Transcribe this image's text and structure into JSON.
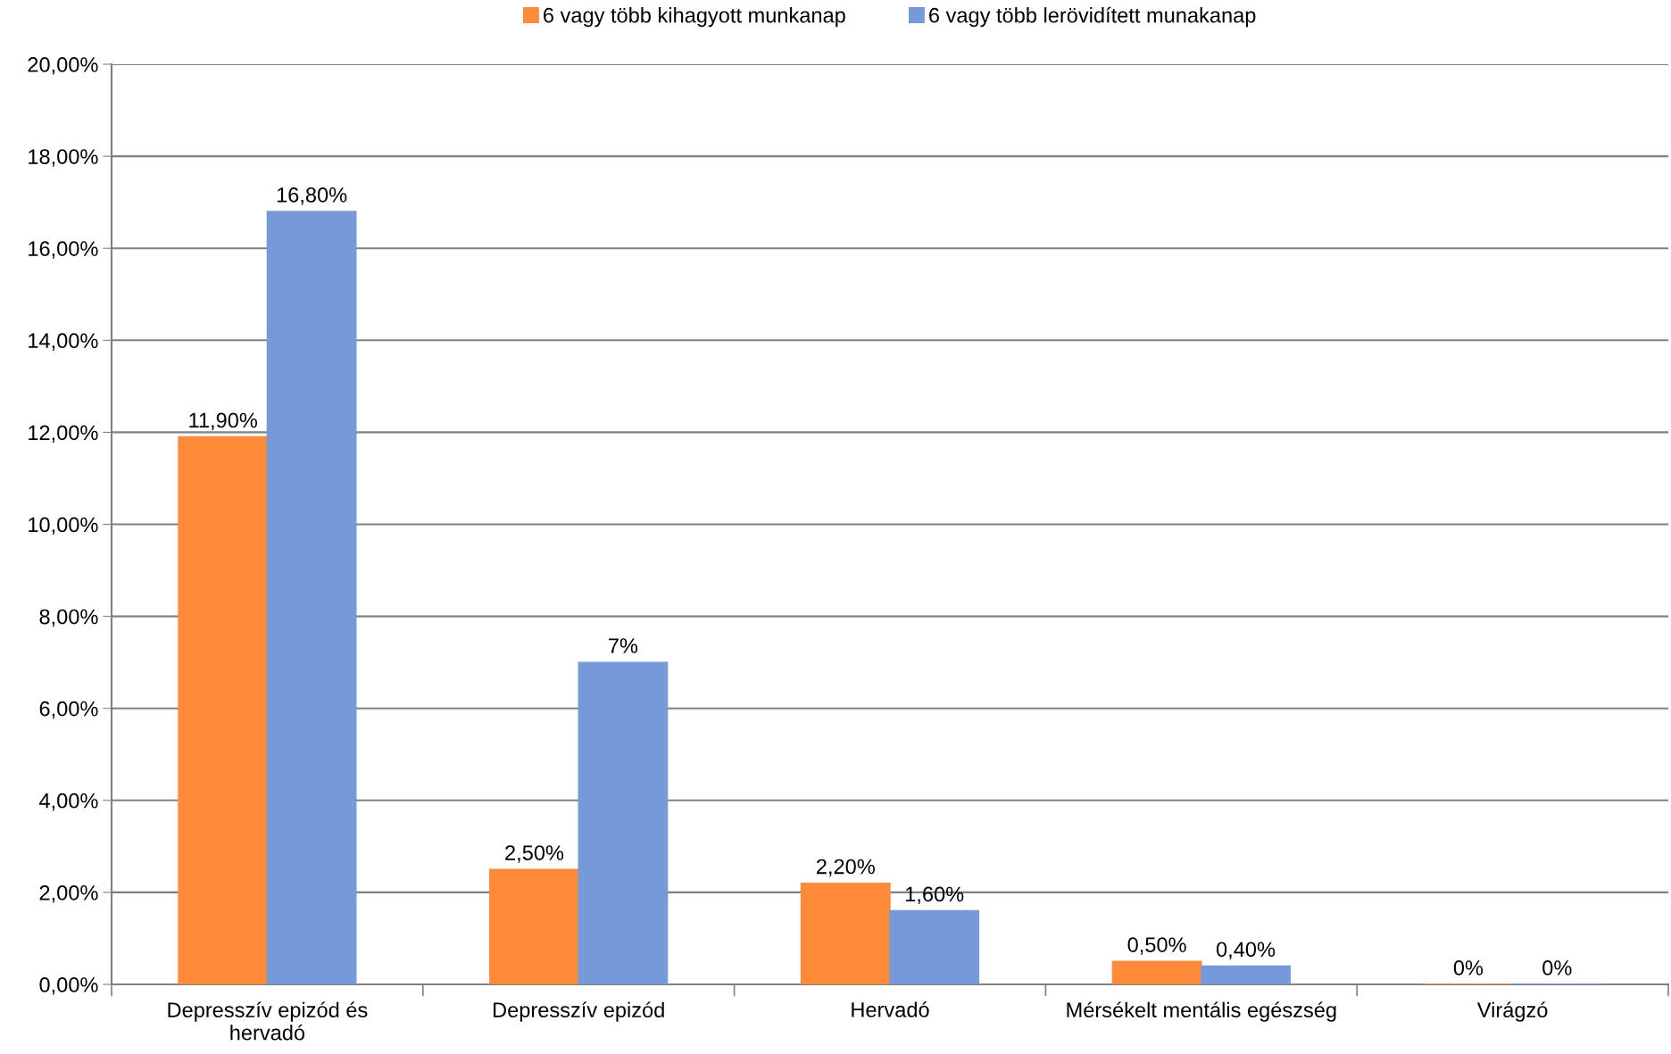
{
  "chart_data": {
    "type": "bar",
    "categories": [
      "Depresszív epizód és\nhervadó",
      "Depresszív epizód",
      "Hervadó",
      "Mérsékelt mentális egészség",
      "Virágzó"
    ],
    "series": [
      {
        "name": "6 vagy több kihagyott munkanap",
        "color": "#fe8a3a",
        "values": [
          11.9,
          2.5,
          2.2,
          0.5,
          0
        ],
        "value_labels": [
          "11,90%",
          "2,50%",
          "2,20%",
          "0,50%",
          "0%"
        ]
      },
      {
        "name": "6 vagy több lerövidített munakanap",
        "color": "#7699d9",
        "values": [
          16.8,
          7,
          1.6,
          0.4,
          0
        ],
        "value_labels": [
          "16,80%",
          "7%",
          "1,60%",
          "0,40%",
          "0%"
        ]
      }
    ],
    "ylim": [
      0,
      20
    ],
    "yticks": [
      {
        "value": 0,
        "label": "0,00%"
      },
      {
        "value": 2,
        "label": "2,00%"
      },
      {
        "value": 4,
        "label": "4,00%"
      },
      {
        "value": 6,
        "label": "6,00%"
      },
      {
        "value": 8,
        "label": "8,00%"
      },
      {
        "value": 10,
        "label": "10,00%"
      },
      {
        "value": 12,
        "label": "12,00%"
      },
      {
        "value": 14,
        "label": "14,00%"
      },
      {
        "value": 16,
        "label": "16,00%"
      },
      {
        "value": 18,
        "label": "18,00%"
      },
      {
        "value": 20,
        "label": "20,00%"
      }
    ],
    "grid": "y",
    "legend": "top"
  }
}
